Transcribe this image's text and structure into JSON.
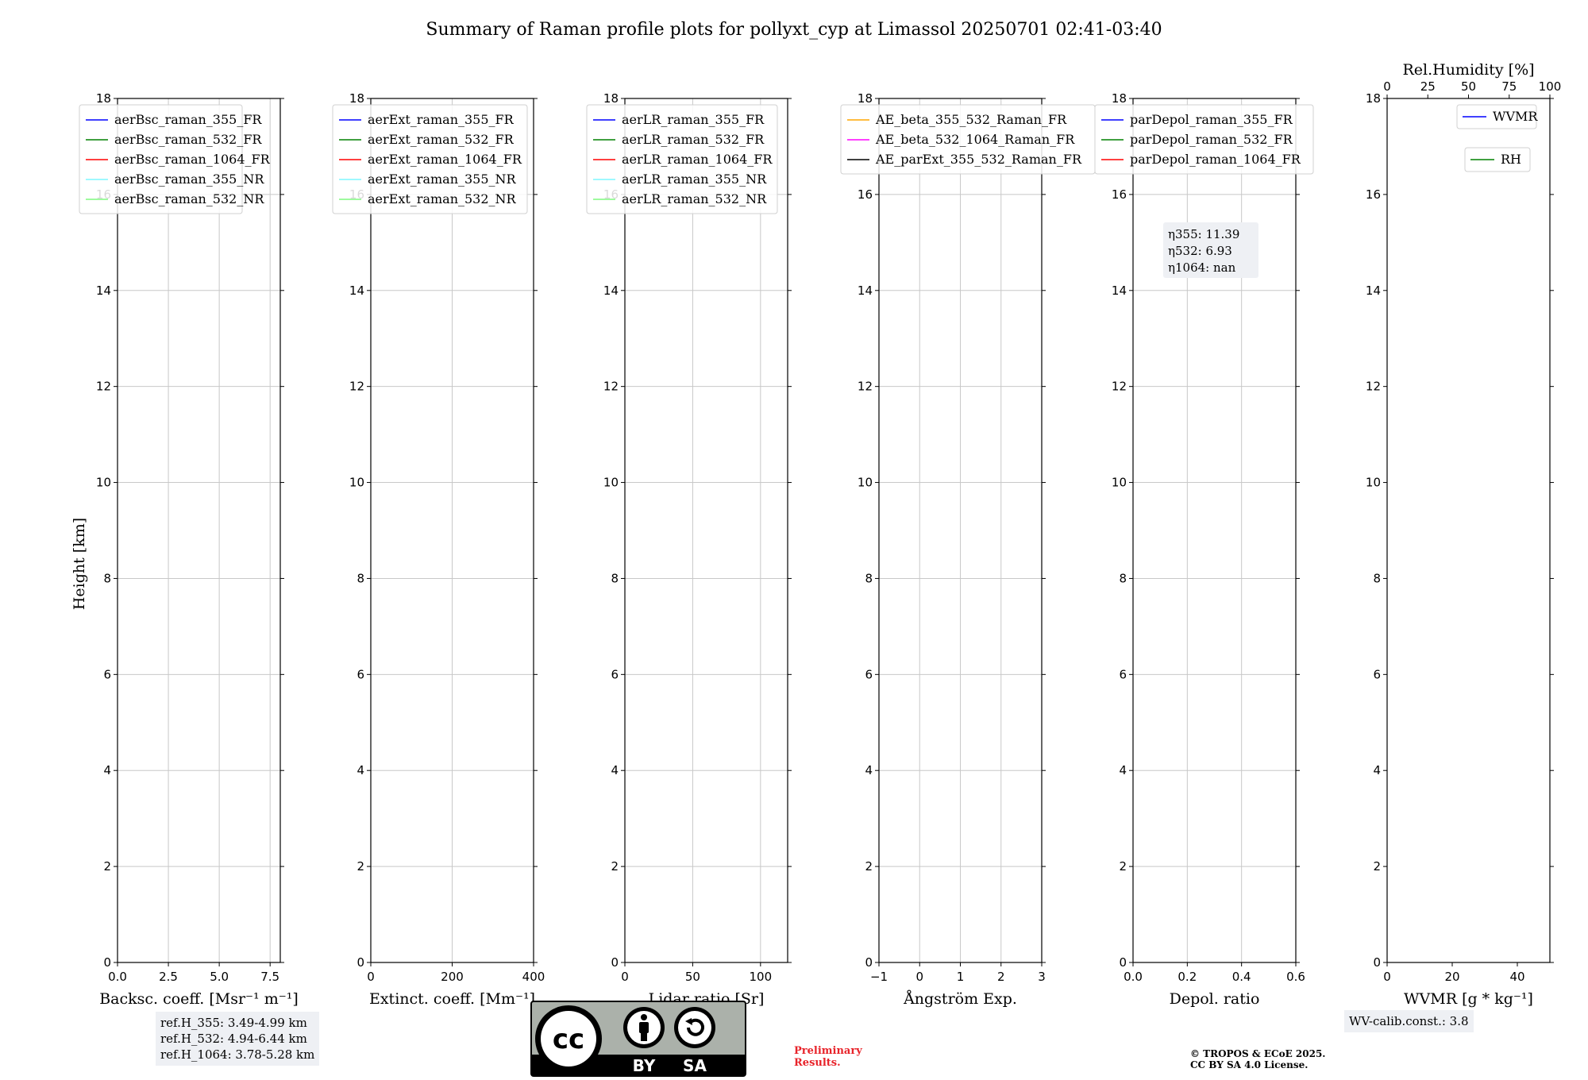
{
  "title": "Summary of Raman profile plots for pollyxt_cyp at Limassol 20250701 02:41-03:40",
  "y_axis_label": "Height [km]",
  "chart_data": [
    {
      "type": "line",
      "xlabel": "Backsc. coeff. [Msr⁻¹ m⁻¹]",
      "xlim": [
        0,
        8
      ],
      "xticks": [
        0,
        2.5,
        5,
        7.5
      ],
      "xticklabels": [
        "0.0",
        "2.5",
        "5.0",
        "7.5"
      ],
      "ylim": [
        0,
        18
      ],
      "yticks": [
        0,
        2,
        4,
        6,
        8,
        10,
        12,
        14,
        16,
        18
      ],
      "grid": true,
      "legend": [
        "aerBsc_raman_355_FR",
        "aerBsc_raman_532_FR",
        "aerBsc_raman_1064_FR",
        "aerBsc_raman_355_NR",
        "aerBsc_raman_532_NR"
      ],
      "legend_colors": [
        "#0000ff",
        "#008000",
        "#ff0000",
        "#7ff7ff",
        "#7ff87f"
      ]
    },
    {
      "type": "line",
      "xlabel": "Extinct. coeff. [Mm⁻¹]",
      "xlim": [
        0,
        400
      ],
      "xticks": [
        0,
        200,
        400
      ],
      "xticklabels": [
        "0",
        "200",
        "400"
      ],
      "ylim": [
        0,
        18
      ],
      "yticks": [
        0,
        2,
        4,
        6,
        8,
        10,
        12,
        14,
        16,
        18
      ],
      "grid": true,
      "legend": [
        "aerExt_raman_355_FR",
        "aerExt_raman_532_FR",
        "aerExt_raman_1064_FR",
        "aerExt_raman_355_NR",
        "aerExt_raman_532_NR"
      ],
      "legend_colors": [
        "#0000ff",
        "#008000",
        "#ff0000",
        "#7ff7ff",
        "#7ff87f"
      ]
    },
    {
      "type": "line",
      "xlabel": "Lidar ratio [Sr]",
      "xlim": [
        0,
        120
      ],
      "xticks": [
        0,
        50,
        100
      ],
      "xticklabels": [
        "0",
        "50",
        "100"
      ],
      "ylim": [
        0,
        18
      ],
      "yticks": [
        0,
        2,
        4,
        6,
        8,
        10,
        12,
        14,
        16,
        18
      ],
      "grid": true,
      "legend": [
        "aerLR_raman_355_FR",
        "aerLR_raman_532_FR",
        "aerLR_raman_1064_FR",
        "aerLR_raman_355_NR",
        "aerLR_raman_532_NR"
      ],
      "legend_colors": [
        "#0000ff",
        "#008000",
        "#ff0000",
        "#7ff7ff",
        "#7ff87f"
      ]
    },
    {
      "type": "line",
      "xlabel": "Ångström Exp.",
      "xlim": [
        -1,
        3
      ],
      "xticks": [
        -1,
        0,
        1,
        2,
        3
      ],
      "xticklabels": [
        "−1",
        "0",
        "1",
        "2",
        "3"
      ],
      "ylim": [
        0,
        18
      ],
      "yticks": [
        0,
        2,
        4,
        6,
        8,
        10,
        12,
        14,
        16,
        18
      ],
      "grid": true,
      "legend": [
        "AE_beta_355_532_Raman_FR",
        "AE_beta_532_1064_Raman_FR",
        "AE_parExt_355_532_Raman_FR"
      ],
      "legend_colors": [
        "#ffa500",
        "#ff00ff",
        "#000000"
      ]
    },
    {
      "type": "line",
      "xlabel": "Depol. ratio",
      "xlim": [
        0,
        0.6
      ],
      "xticks": [
        0,
        0.2,
        0.4,
        0.6
      ],
      "xticklabels": [
        "0.0",
        "0.2",
        "0.4",
        "0.6"
      ],
      "ylim": [
        0,
        18
      ],
      "yticks": [
        0,
        2,
        4,
        6,
        8,
        10,
        12,
        14,
        16,
        18
      ],
      "grid": true,
      "legend": [
        "parDepol_raman_355_FR",
        "parDepol_raman_532_FR",
        "parDepol_raman_1064_FR"
      ],
      "legend_colors": [
        "#0000ff",
        "#008000",
        "#ff0000"
      ],
      "annotation": [
        "η355: 11.39",
        "η532: 6.93",
        "η1064: nan"
      ]
    },
    {
      "type": "line",
      "xlabel": "WVMR [g * kg⁻¹]",
      "xlim": [
        0,
        50
      ],
      "xticks": [
        0,
        20,
        40
      ],
      "xticklabels": [
        "0",
        "20",
        "40"
      ],
      "secondary_xlabel": "Rel.Humidity [%]",
      "secondary_xlim": [
        0,
        100
      ],
      "secondary_xticklabels": [
        "0",
        "25",
        "50",
        "75",
        "100"
      ],
      "ylim": [
        0,
        18
      ],
      "yticks": [
        0,
        2,
        4,
        6,
        8,
        10,
        12,
        14,
        16,
        18
      ],
      "grid": false,
      "legend": [
        "WVMR",
        "RH"
      ],
      "legend_colors": [
        "#0000ff",
        "#008000"
      ]
    }
  ],
  "ref_heights": [
    "ref.H_355: 3.49-4.99 km",
    "ref.H_532: 4.94-6.44 km",
    "ref.H_1064: 3.78-5.28 km"
  ],
  "wv_calib": "WV-calib.const.: 3.8",
  "preliminary": [
    "Preliminary",
    "Results."
  ],
  "copyright": [
    "© TROPOS & ECoE 2025.",
    "CC BY SA 4.0 License."
  ],
  "badge": {
    "cc": "cc",
    "by": "BY",
    "sa": "SA"
  }
}
